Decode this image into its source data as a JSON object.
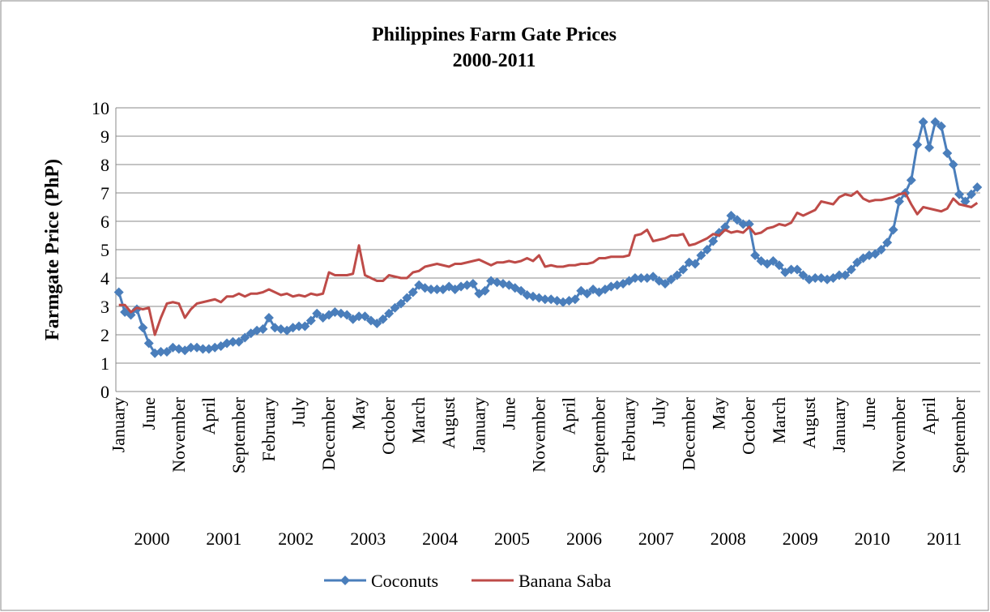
{
  "chart_data": {
    "type": "line",
    "title": "Philippines Farm Gate Prices",
    "subtitle": "2000-2011",
    "y_label": "Farmgate Price (PhP)",
    "categories": [
      "January",
      null,
      null,
      null,
      null,
      "June",
      null,
      null,
      null,
      null,
      "November",
      null,
      null,
      null,
      null,
      "April",
      null,
      null,
      null,
      null,
      "September",
      null,
      null,
      null,
      null,
      "February",
      null,
      null,
      null,
      null,
      "July",
      null,
      null,
      null,
      null,
      "December",
      null,
      null,
      null,
      null,
      "May",
      null,
      null,
      null,
      null,
      "October",
      null,
      null,
      null,
      null,
      "March",
      null,
      null,
      null,
      null,
      "August",
      null,
      null,
      null,
      null,
      "January",
      null,
      null,
      null,
      null,
      "June",
      null,
      null,
      null,
      null,
      "November",
      null,
      null,
      null,
      null,
      "April",
      null,
      null,
      null,
      null,
      "September",
      null,
      null,
      null,
      null,
      "February",
      null,
      null,
      null,
      null,
      "July",
      null,
      null,
      null,
      null,
      "December",
      null,
      null,
      null,
      null,
      "May",
      null,
      null,
      null,
      null,
      "October",
      null,
      null,
      null,
      null,
      "March",
      null,
      null,
      null,
      null,
      "August",
      null,
      null,
      null,
      null,
      "January",
      null,
      null,
      null,
      null,
      "June",
      null,
      null,
      null,
      null,
      "November",
      null,
      null,
      null,
      null,
      "April",
      null,
      null,
      null,
      null,
      "September",
      null,
      null,
      null
    ],
    "groups": [
      "2000",
      "2001",
      "2002",
      "2003",
      "2004",
      "2005",
      "2006",
      "2007",
      "2008",
      "2009",
      "2010",
      "2011"
    ],
    "series": [
      {
        "name": "Coconuts",
        "color": "#4a7ebb",
        "marker": "diamond",
        "values": [
          3.5,
          2.8,
          2.7,
          2.9,
          2.25,
          1.7,
          1.35,
          1.4,
          1.4,
          1.55,
          1.5,
          1.45,
          1.55,
          1.55,
          1.5,
          1.5,
          1.55,
          1.6,
          1.7,
          1.75,
          1.75,
          1.9,
          2.05,
          2.15,
          2.2,
          2.6,
          2.25,
          2.2,
          2.15,
          2.25,
          2.3,
          2.3,
          2.5,
          2.75,
          2.6,
          2.7,
          2.8,
          2.75,
          2.7,
          2.55,
          2.65,
          2.65,
          2.5,
          2.4,
          2.55,
          2.75,
          2.95,
          3.1,
          3.3,
          3.5,
          3.75,
          3.65,
          3.6,
          3.6,
          3.6,
          3.7,
          3.6,
          3.7,
          3.75,
          3.8,
          3.45,
          3.55,
          3.9,
          3.85,
          3.8,
          3.75,
          3.65,
          3.55,
          3.4,
          3.35,
          3.3,
          3.25,
          3.25,
          3.2,
          3.15,
          3.2,
          3.25,
          3.55,
          3.45,
          3.6,
          3.5,
          3.6,
          3.7,
          3.75,
          3.8,
          3.9,
          4.0,
          4.0,
          4.0,
          4.05,
          3.9,
          3.8,
          3.95,
          4.1,
          4.3,
          4.55,
          4.5,
          4.8,
          5.0,
          5.3,
          5.6,
          5.8,
          6.2,
          6.05,
          5.9,
          5.9,
          4.8,
          4.6,
          4.5,
          4.6,
          4.45,
          4.2,
          4.3,
          4.3,
          4.1,
          3.95,
          4.0,
          4.0,
          3.95,
          4.0,
          4.1,
          4.1,
          4.3,
          4.55,
          4.7,
          4.8,
          4.85,
          5.0,
          5.25,
          5.7,
          6.7,
          7.0,
          7.45,
          8.7,
          9.5,
          8.6,
          9.5,
          9.35,
          8.4,
          8.0,
          6.95,
          6.7,
          6.95,
          7.2
        ]
      },
      {
        "name": "Banana Saba",
        "color": "#be4b48",
        "values": [
          3.05,
          3.05,
          2.8,
          2.95,
          2.9,
          2.95,
          2.0,
          2.6,
          3.1,
          3.15,
          3.1,
          2.6,
          2.9,
          3.1,
          3.15,
          3.2,
          3.25,
          3.15,
          3.35,
          3.35,
          3.45,
          3.35,
          3.45,
          3.45,
          3.5,
          3.6,
          3.5,
          3.4,
          3.45,
          3.35,
          3.4,
          3.35,
          3.45,
          3.4,
          3.45,
          4.2,
          4.1,
          4.1,
          4.1,
          4.15,
          5.15,
          4.1,
          4.0,
          3.9,
          3.9,
          4.1,
          4.05,
          4.0,
          4.0,
          4.2,
          4.25,
          4.4,
          4.45,
          4.5,
          4.45,
          4.4,
          4.5,
          4.5,
          4.55,
          4.6,
          4.65,
          4.55,
          4.45,
          4.55,
          4.55,
          4.6,
          4.55,
          4.6,
          4.7,
          4.6,
          4.8,
          4.4,
          4.45,
          4.4,
          4.4,
          4.45,
          4.45,
          4.5,
          4.5,
          4.55,
          4.7,
          4.7,
          4.75,
          4.75,
          4.75,
          4.8,
          5.5,
          5.55,
          5.7,
          5.3,
          5.35,
          5.4,
          5.5,
          5.5,
          5.55,
          5.15,
          5.2,
          5.3,
          5.4,
          5.55,
          5.5,
          5.7,
          5.6,
          5.65,
          5.6,
          5.8,
          5.55,
          5.6,
          5.75,
          5.8,
          5.9,
          5.85,
          5.95,
          6.3,
          6.2,
          6.3,
          6.4,
          6.7,
          6.65,
          6.6,
          6.85,
          6.95,
          6.9,
          7.05,
          6.8,
          6.7,
          6.75,
          6.75,
          6.8,
          6.85,
          6.95,
          7.0,
          6.6,
          6.25,
          6.5,
          6.45,
          6.4,
          6.35,
          6.45,
          6.8,
          6.6,
          6.55,
          6.5,
          6.65
        ]
      }
    ],
    "ylim": [
      0,
      10
    ],
    "yticks": [
      0,
      1,
      2,
      3,
      4,
      5,
      6,
      7,
      8,
      9,
      10
    ],
    "grid": true,
    "legend": "bottom"
  }
}
